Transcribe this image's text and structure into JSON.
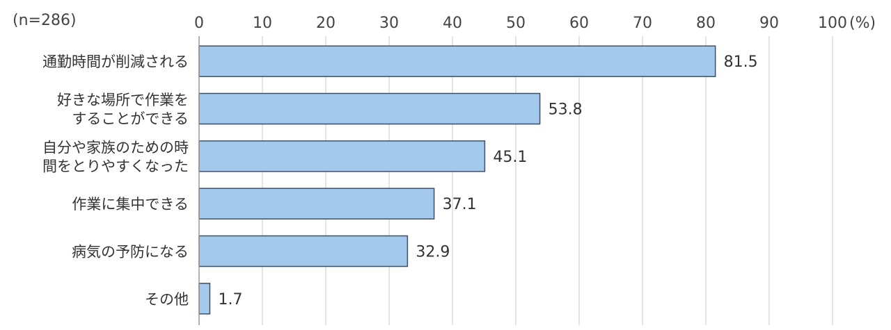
{
  "chart_data": {
    "type": "bar",
    "orientation": "horizontal",
    "note": "(n=286)",
    "unit": "(%)",
    "xlim": [
      0,
      100
    ],
    "xticks": [
      "0",
      "10",
      "20",
      "30",
      "40",
      "50",
      "60",
      "70",
      "80",
      "90",
      "100"
    ],
    "grid": true,
    "categories": [
      [
        "通勤時間が削減される"
      ],
      [
        "好きな場所で作業を",
        "することができる"
      ],
      [
        "自分や家族のための時",
        "間をとりやすくなった"
      ],
      [
        "作業に集中できる"
      ],
      [
        "病気の予防になる"
      ],
      [
        "その他"
      ]
    ],
    "values": [
      81.5,
      53.8,
      45.1,
      37.1,
      32.9,
      1.7
    ],
    "value_labels": [
      "81.5",
      "53.8",
      "45.1",
      "37.1",
      "32.9",
      "1.7"
    ],
    "bar_color": "#a3c9ec",
    "bar_stroke": "#3f4f66",
    "grid_color": "#c8c8c8"
  }
}
